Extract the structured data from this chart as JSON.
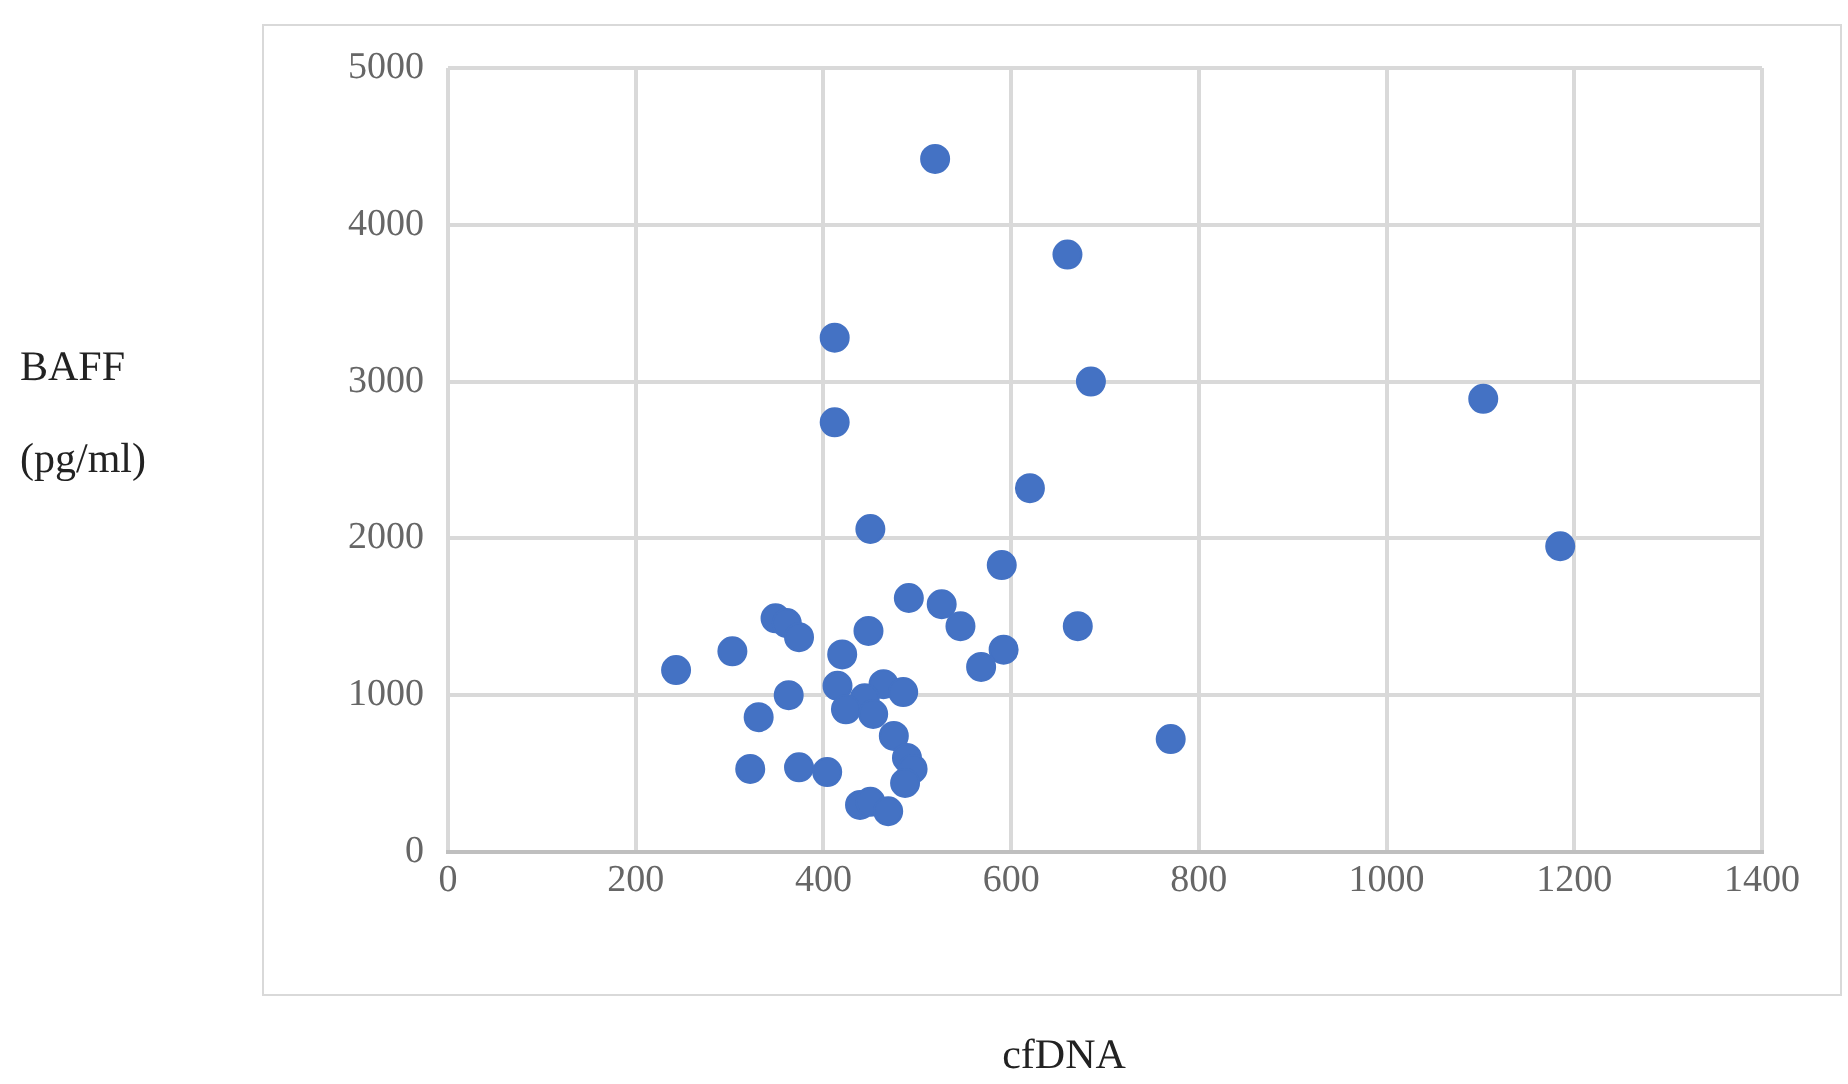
{
  "chart_data": {
    "type": "scatter",
    "xlabel": "cfDNA",
    "ylabel": "BAFF (pg/ml)",
    "x": [
      519,
      660,
      412,
      685,
      1103,
      412,
      620,
      450,
      590,
      1185,
      491,
      526,
      546,
      671,
      349,
      361,
      374,
      303,
      243,
      448,
      420,
      592,
      568,
      415,
      363,
      464,
      485,
      444,
      424,
      453,
      331,
      475,
      489,
      495,
      487,
      322,
      374,
      404,
      439,
      450,
      469,
      770
    ],
    "series": [
      {
        "color": "#4472c4",
        "values": [
          4420,
          3810,
          3280,
          3000,
          2890,
          2740,
          2320,
          2060,
          1830,
          1950,
          1620,
          1580,
          1440,
          1440,
          1490,
          1460,
          1370,
          1280,
          1160,
          1410,
          1260,
          1290,
          1180,
          1060,
          1000,
          1070,
          1020,
          980,
          910,
          880,
          860,
          740,
          600,
          530,
          440,
          530,
          540,
          510,
          300,
          320,
          260,
          720
        ]
      }
    ],
    "xlim": [
      0,
      1400
    ],
    "xticks": [
      0,
      200,
      400,
      600,
      800,
      1000,
      1200,
      1400
    ],
    "ylim": [
      0,
      5000
    ],
    "yticks": [
      0,
      1000,
      2000,
      3000,
      4000,
      5000
    ],
    "grid": true,
    "marker": "circle",
    "legend": false
  }
}
